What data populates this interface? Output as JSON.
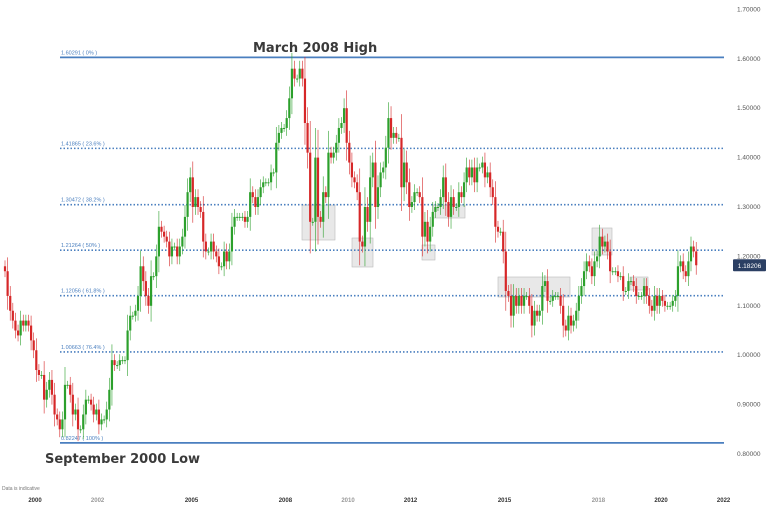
{
  "chart_data": {
    "type": "candlestick",
    "title": "",
    "start": "1999-01",
    "interval": "month",
    "open_first": 1.18,
    "closes": [
      1.17,
      1.12,
      1.09,
      1.07,
      1.05,
      1.04,
      1.07,
      1.06,
      1.07,
      1.06,
      1.03,
      1.01,
      0.97,
      0.96,
      0.96,
      0.91,
      0.93,
      0.95,
      0.92,
      0.88,
      0.87,
      0.85,
      0.87,
      0.94,
      0.94,
      0.92,
      0.88,
      0.89,
      0.85,
      0.85,
      0.88,
      0.91,
      0.91,
      0.9,
      0.88,
      0.89,
      0.86,
      0.87,
      0.87,
      0.89,
      0.93,
      0.99,
      0.98,
      0.98,
      0.99,
      0.99,
      0.99,
      1.05,
      1.08,
      1.08,
      1.09,
      1.12,
      1.18,
      1.15,
      1.12,
      1.1,
      1.16,
      1.16,
      1.2,
      1.26,
      1.25,
      1.24,
      1.23,
      1.2,
      1.22,
      1.22,
      1.2,
      1.22,
      1.24,
      1.28,
      1.33,
      1.36,
      1.3,
      1.32,
      1.3,
      1.29,
      1.23,
      1.21,
      1.21,
      1.23,
      1.21,
      1.2,
      1.18,
      1.18,
      1.21,
      1.19,
      1.21,
      1.26,
      1.28,
      1.28,
      1.28,
      1.28,
      1.27,
      1.28,
      1.33,
      1.32,
      1.3,
      1.32,
      1.34,
      1.35,
      1.35,
      1.35,
      1.37,
      1.37,
      1.43,
      1.45,
      1.46,
      1.46,
      1.48,
      1.52,
      1.58,
      1.56,
      1.56,
      1.58,
      1.56,
      1.47,
      1.41,
      1.27,
      1.27,
      1.4,
      1.28,
      1.27,
      1.33,
      1.32,
      1.41,
      1.4,
      1.41,
      1.43,
      1.46,
      1.47,
      1.5,
      1.43,
      1.39,
      1.36,
      1.35,
      1.33,
      1.23,
      1.22,
      1.3,
      1.27,
      1.36,
      1.39,
      1.3,
      1.34,
      1.37,
      1.38,
      1.42,
      1.48,
      1.44,
      1.45,
      1.44,
      1.44,
      1.34,
      1.39,
      1.35,
      1.3,
      1.31,
      1.33,
      1.33,
      1.32,
      1.24,
      1.27,
      1.23,
      1.26,
      1.29,
      1.3,
      1.3,
      1.32,
      1.36,
      1.31,
      1.28,
      1.32,
      1.3,
      1.3,
      1.33,
      1.32,
      1.35,
      1.38,
      1.36,
      1.38,
      1.35,
      1.38,
      1.38,
      1.39,
      1.36,
      1.37,
      1.34,
      1.32,
      1.26,
      1.25,
      1.25,
      1.21,
      1.13,
      1.12,
      1.08,
      1.12,
      1.1,
      1.12,
      1.1,
      1.12,
      1.12,
      1.1,
      1.06,
      1.09,
      1.08,
      1.09,
      1.14,
      1.15,
      1.11,
      1.11,
      1.12,
      1.12,
      1.12,
      1.1,
      1.06,
      1.05,
      1.08,
      1.06,
      1.07,
      1.09,
      1.12,
      1.14,
      1.17,
      1.19,
      1.18,
      1.16,
      1.19,
      1.2,
      1.24,
      1.22,
      1.23,
      1.21,
      1.17,
      1.17,
      1.17,
      1.16,
      1.16,
      1.13,
      1.13,
      1.15,
      1.15,
      1.14,
      1.12,
      1.12,
      1.12,
      1.14,
      1.12,
      1.1,
      1.09,
      1.12,
      1.1,
      1.12,
      1.11,
      1.1,
      1.1,
      1.1,
      1.11,
      1.12,
      1.18,
      1.19,
      1.17,
      1.16,
      1.19,
      1.22,
      1.21,
      1.18206
    ],
    "ylim": [
      0.8,
      1.7
    ],
    "y_ticks": [
      "1.70000",
      "1.60000",
      "1.50000",
      "1.40000",
      "1.30000",
      "1.20000",
      "1.10000",
      "1.00000",
      "0.90000",
      "0.80000"
    ],
    "x_ticks": [
      "2000",
      "2002",
      "2005",
      "2008",
      "2010",
      "2012",
      "2015",
      "2018",
      "2020",
      "2022"
    ],
    "current_price": "1.18206",
    "fib_levels": [
      {
        "value": 1.60291,
        "label": "1.60291 ( 0% )",
        "style": "solid"
      },
      {
        "value": 1.41865,
        "label": "1.41865 ( 23.6% )",
        "style": "dotted"
      },
      {
        "value": 1.30472,
        "label": "1.30472 ( 38.2% )",
        "style": "dotted"
      },
      {
        "value": 1.21264,
        "label": "1.21264 ( 50% )",
        "style": "dotted"
      },
      {
        "value": 1.12056,
        "label": "1.12056 ( 61.8% )",
        "style": "dotted"
      },
      {
        "value": 1.00663,
        "label": "1.00663 ( 76.4% )",
        "style": "dotted"
      },
      {
        "value": 0.82247,
        "label": "0.82247 ( 100% )",
        "style": "solid"
      }
    ],
    "annotations": [
      "March 2008 High",
      "September 2000 Low"
    ],
    "grid": false,
    "colors": {
      "up": "#2ca02c",
      "down": "#d62728",
      "fib": "#4a7fbf",
      "price_tag": "#2b3f63",
      "highlight": "#d9d9d9"
    }
  },
  "footnote": "Data is indicative"
}
